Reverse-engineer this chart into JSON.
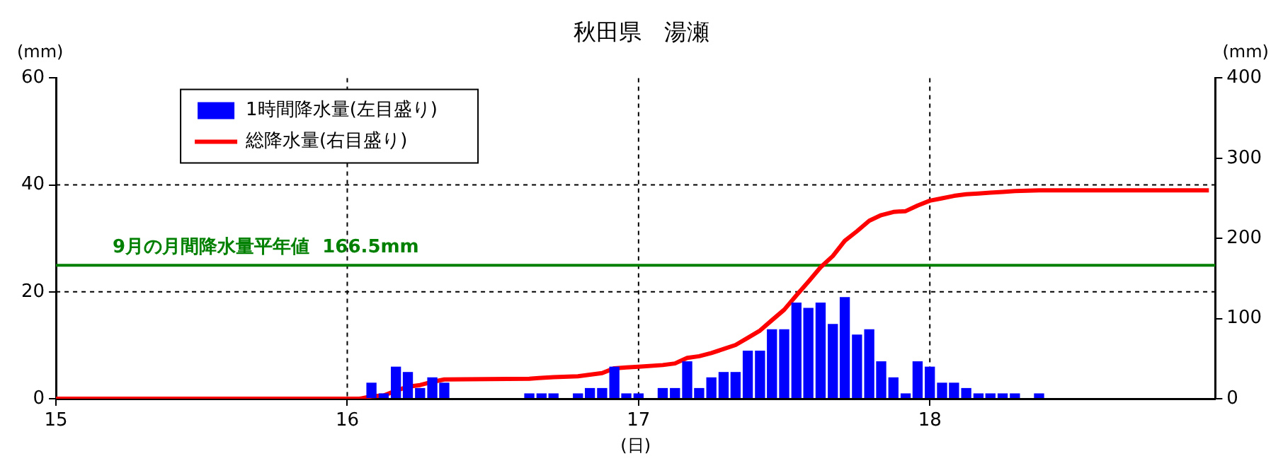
{
  "chart_data": {
    "type": "bar",
    "title": "秋田県　湯瀬",
    "xlabel": "(日)",
    "ylabel": "(mm)",
    "y2label": "(mm)",
    "xlim": [
      15,
      18.98
    ],
    "xticks": [
      15,
      16,
      17,
      18
    ],
    "ylim": [
      0,
      60
    ],
    "yticks": [
      0,
      20,
      40,
      60
    ],
    "y2lim": [
      0,
      400
    ],
    "y2ticks": [
      0,
      100,
      200,
      300,
      400
    ],
    "grid": true,
    "legend": "top left",
    "series": [
      {
        "name": "1時間降水量(左目盛り)",
        "color": "#0000ff",
        "x": [
          16.083,
          16.125,
          16.167,
          16.208,
          16.25,
          16.292,
          16.333,
          16.625,
          16.667,
          16.708,
          16.792,
          16.833,
          16.875,
          16.917,
          16.958,
          17,
          17.083,
          17.125,
          17.167,
          17.208,
          17.25,
          17.292,
          17.333,
          17.375,
          17.417,
          17.458,
          17.5,
          17.542,
          17.583,
          17.625,
          17.667,
          17.708,
          17.75,
          17.792,
          17.833,
          17.875,
          17.917,
          17.958,
          18,
          18.042,
          18.083,
          18.125,
          18.167,
          18.208,
          18.25,
          18.292,
          18.375
        ],
        "values": [
          3,
          1,
          6,
          5,
          2,
          4,
          3,
          1,
          1,
          1,
          1,
          2,
          2,
          6,
          1,
          1,
          2,
          2,
          7,
          2,
          4,
          5,
          5,
          9,
          9,
          13,
          13,
          18,
          17,
          18,
          14,
          19,
          12,
          13,
          7,
          4,
          1,
          7,
          6,
          3,
          3,
          2,
          1,
          1,
          1,
          1,
          1
        ]
      },
      {
        "name": "総降水量(右目盛り)",
        "type": "line",
        "axis": "y2",
        "color": "#ff0000",
        "marker": "none",
        "line_style": "solid",
        "x": [
          15,
          16.042,
          16.083,
          16.125,
          16.167,
          16.208,
          16.25,
          16.292,
          16.333,
          16.625,
          16.667,
          16.708,
          16.792,
          16.833,
          16.875,
          16.917,
          16.958,
          17,
          17.083,
          17.125,
          17.167,
          17.208,
          17.25,
          17.292,
          17.333,
          17.375,
          17.417,
          17.458,
          17.5,
          17.542,
          17.583,
          17.625,
          17.667,
          17.708,
          17.75,
          17.792,
          17.833,
          17.875,
          17.917,
          17.958,
          18,
          18.042,
          18.083,
          18.125,
          18.167,
          18.208,
          18.25,
          18.292,
          18.375,
          18.958
        ],
        "values": [
          0,
          0,
          3,
          4,
          10,
          15,
          17,
          21,
          24,
          25,
          26,
          27,
          28,
          30,
          32,
          38,
          39,
          40,
          42,
          44,
          51,
          53,
          57,
          62,
          67,
          76,
          85,
          98,
          111,
          129,
          146,
          164,
          178,
          197,
          209,
          222,
          229,
          233,
          234,
          241,
          247,
          250,
          253,
          255,
          256,
          257,
          258,
          259,
          260,
          260
        ]
      }
    ],
    "ref_lines": [
      {
        "axis": "y2",
        "value": 166.5,
        "label": "9月の月間降水量平年値  166.5mm",
        "color": "#008000"
      }
    ]
  }
}
